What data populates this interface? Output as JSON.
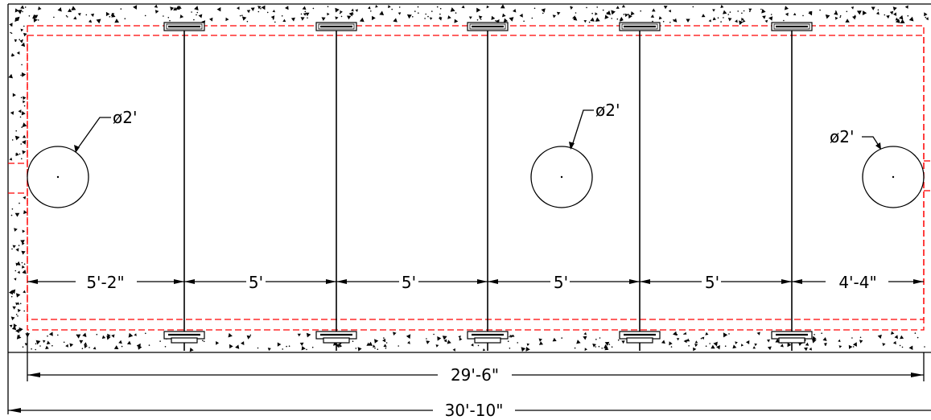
{
  "drawing": {
    "colors": {
      "line": "#000000",
      "hidden": "#ff0000",
      "background": "#ffffff"
    },
    "overall_dimension": "30'-10\"",
    "inner_dimension": "29'-6\"",
    "bay_dimensions": [
      "5'-2\"",
      "5'",
      "5'",
      "5'",
      "5'",
      "4'-4\""
    ],
    "openings": [
      {
        "label": "ø2'"
      },
      {
        "label": "ø2'"
      },
      {
        "label": "ø2'"
      }
    ],
    "hatch": "concrete"
  }
}
